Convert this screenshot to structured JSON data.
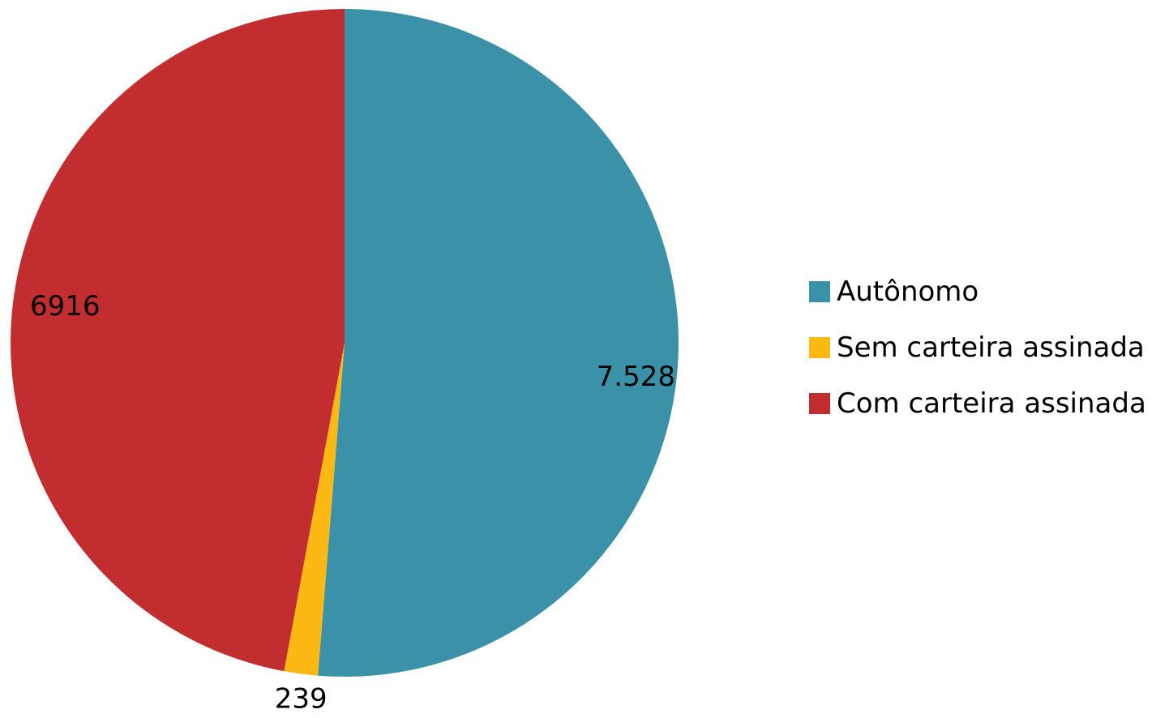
{
  "chart_data": {
    "type": "pie",
    "categories": [
      "Autônomo",
      "Sem carteira assinada",
      "Com carteira assinada"
    ],
    "values": [
      7528,
      239,
      6916
    ],
    "data_labels": [
      "7.528",
      "239",
      "6916"
    ],
    "colors": [
      "#3b91a8",
      "#fdb913",
      "#c22d2f"
    ],
    "start_angle": "12 o'clock",
    "direction": "clockwise",
    "legend_position": "right"
  }
}
